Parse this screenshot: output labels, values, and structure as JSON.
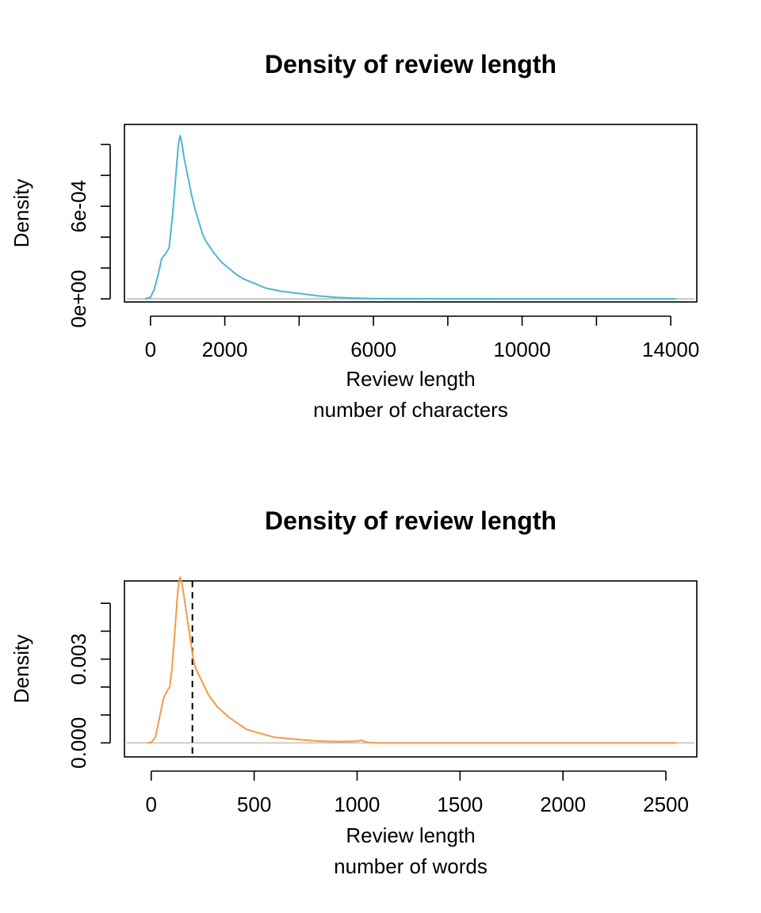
{
  "chart_data": [
    {
      "type": "line",
      "title": "Density of review length",
      "xlabel": "Review length",
      "xlabel2": "number of characters",
      "ylabel": "Density",
      "color": "#4ab8d3",
      "xlim": [
        -700,
        14700
      ],
      "ylim": [
        -2e-05,
        0.00113
      ],
      "x_ticks": [
        0,
        2000,
        4000,
        6000,
        8000,
        10000,
        12000,
        14000
      ],
      "x_tick_labels": [
        "0",
        "2000",
        "",
        "6000",
        "",
        "10000",
        "",
        "14000"
      ],
      "y_ticks": [
        0,
        0.0002,
        0.0004,
        0.0006,
        0.0008,
        0.001
      ],
      "y_tick_labels": [
        "0e+00",
        "",
        "",
        "6e-04",
        "",
        ""
      ],
      "baseline": 0,
      "series": [
        {
          "x": [
            -150,
            0,
            100,
            200,
            300,
            400,
            500,
            600,
            700,
            750,
            800,
            850,
            900,
            1000,
            1100,
            1200,
            1300,
            1400,
            1500,
            1700,
            1900,
            2100,
            2300,
            2500,
            2800,
            3100,
            3500,
            4000,
            4500,
            5000,
            5500,
            6000,
            7000,
            8000,
            10000,
            12000,
            14150
          ],
          "y": [
            0,
            1e-05,
            6e-05,
            0.00015,
            0.00026,
            0.00029,
            0.00033,
            0.00055,
            0.00085,
            0.001,
            0.00106,
            0.001,
            0.00092,
            0.0008,
            0.00068,
            0.00058,
            0.0005,
            0.00042,
            0.00037,
            0.0003,
            0.00024,
            0.0002,
            0.00016,
            0.00013,
            0.0001,
            7e-05,
            5e-05,
            3.5e-05,
            2e-05,
            1e-05,
            5e-06,
            2e-06,
            1e-06,
            5e-07,
            0,
            0,
            0
          ]
        }
      ]
    },
    {
      "type": "line",
      "title": "Density of review length",
      "xlabel": "Review length",
      "xlabel2": "number of words",
      "ylabel": "Density",
      "color": "#f59b42",
      "xlim": [
        -130,
        2650
      ],
      "ylim": [
        -0.0005,
        0.0058
      ],
      "x_ticks": [
        0,
        500,
        1000,
        1500,
        2000,
        2500
      ],
      "x_tick_labels": [
        "0",
        "500",
        "1000",
        "1500",
        "2000",
        "2500"
      ],
      "y_ticks": [
        0,
        0.001,
        0.002,
        0.003,
        0.004,
        0.005
      ],
      "y_tick_labels": [
        "0.000",
        "",
        "",
        "0.003",
        "",
        ""
      ],
      "baseline": 0,
      "vline": 200,
      "series": [
        {
          "x": [
            -20,
            0,
            20,
            40,
            60,
            80,
            90,
            100,
            110,
            120,
            130,
            140,
            150,
            160,
            170,
            180,
            190,
            200,
            210,
            220,
            240,
            260,
            280,
            300,
            320,
            350,
            380,
            420,
            460,
            500,
            550,
            600,
            700,
            800,
            900,
            1000,
            1020,
            1050,
            1100,
            1500,
            2000,
            2550
          ],
          "y": [
            0,
            2e-05,
            0.0002,
            0.0009,
            0.0016,
            0.0019,
            0.002,
            0.0026,
            0.0035,
            0.0045,
            0.0055,
            0.00595,
            0.0057,
            0.0052,
            0.0047,
            0.0042,
            0.0037,
            0.0032,
            0.0028,
            0.0026,
            0.0023,
            0.002,
            0.0017,
            0.0015,
            0.0013,
            0.0011,
            0.0009,
            0.0007,
            0.0005,
            0.0004,
            0.0003,
            0.0002,
            0.00013,
            7e-05,
            5e-05,
            6e-05,
            0.0001,
            2e-05,
            0,
            0,
            0,
            0
          ]
        }
      ]
    }
  ]
}
